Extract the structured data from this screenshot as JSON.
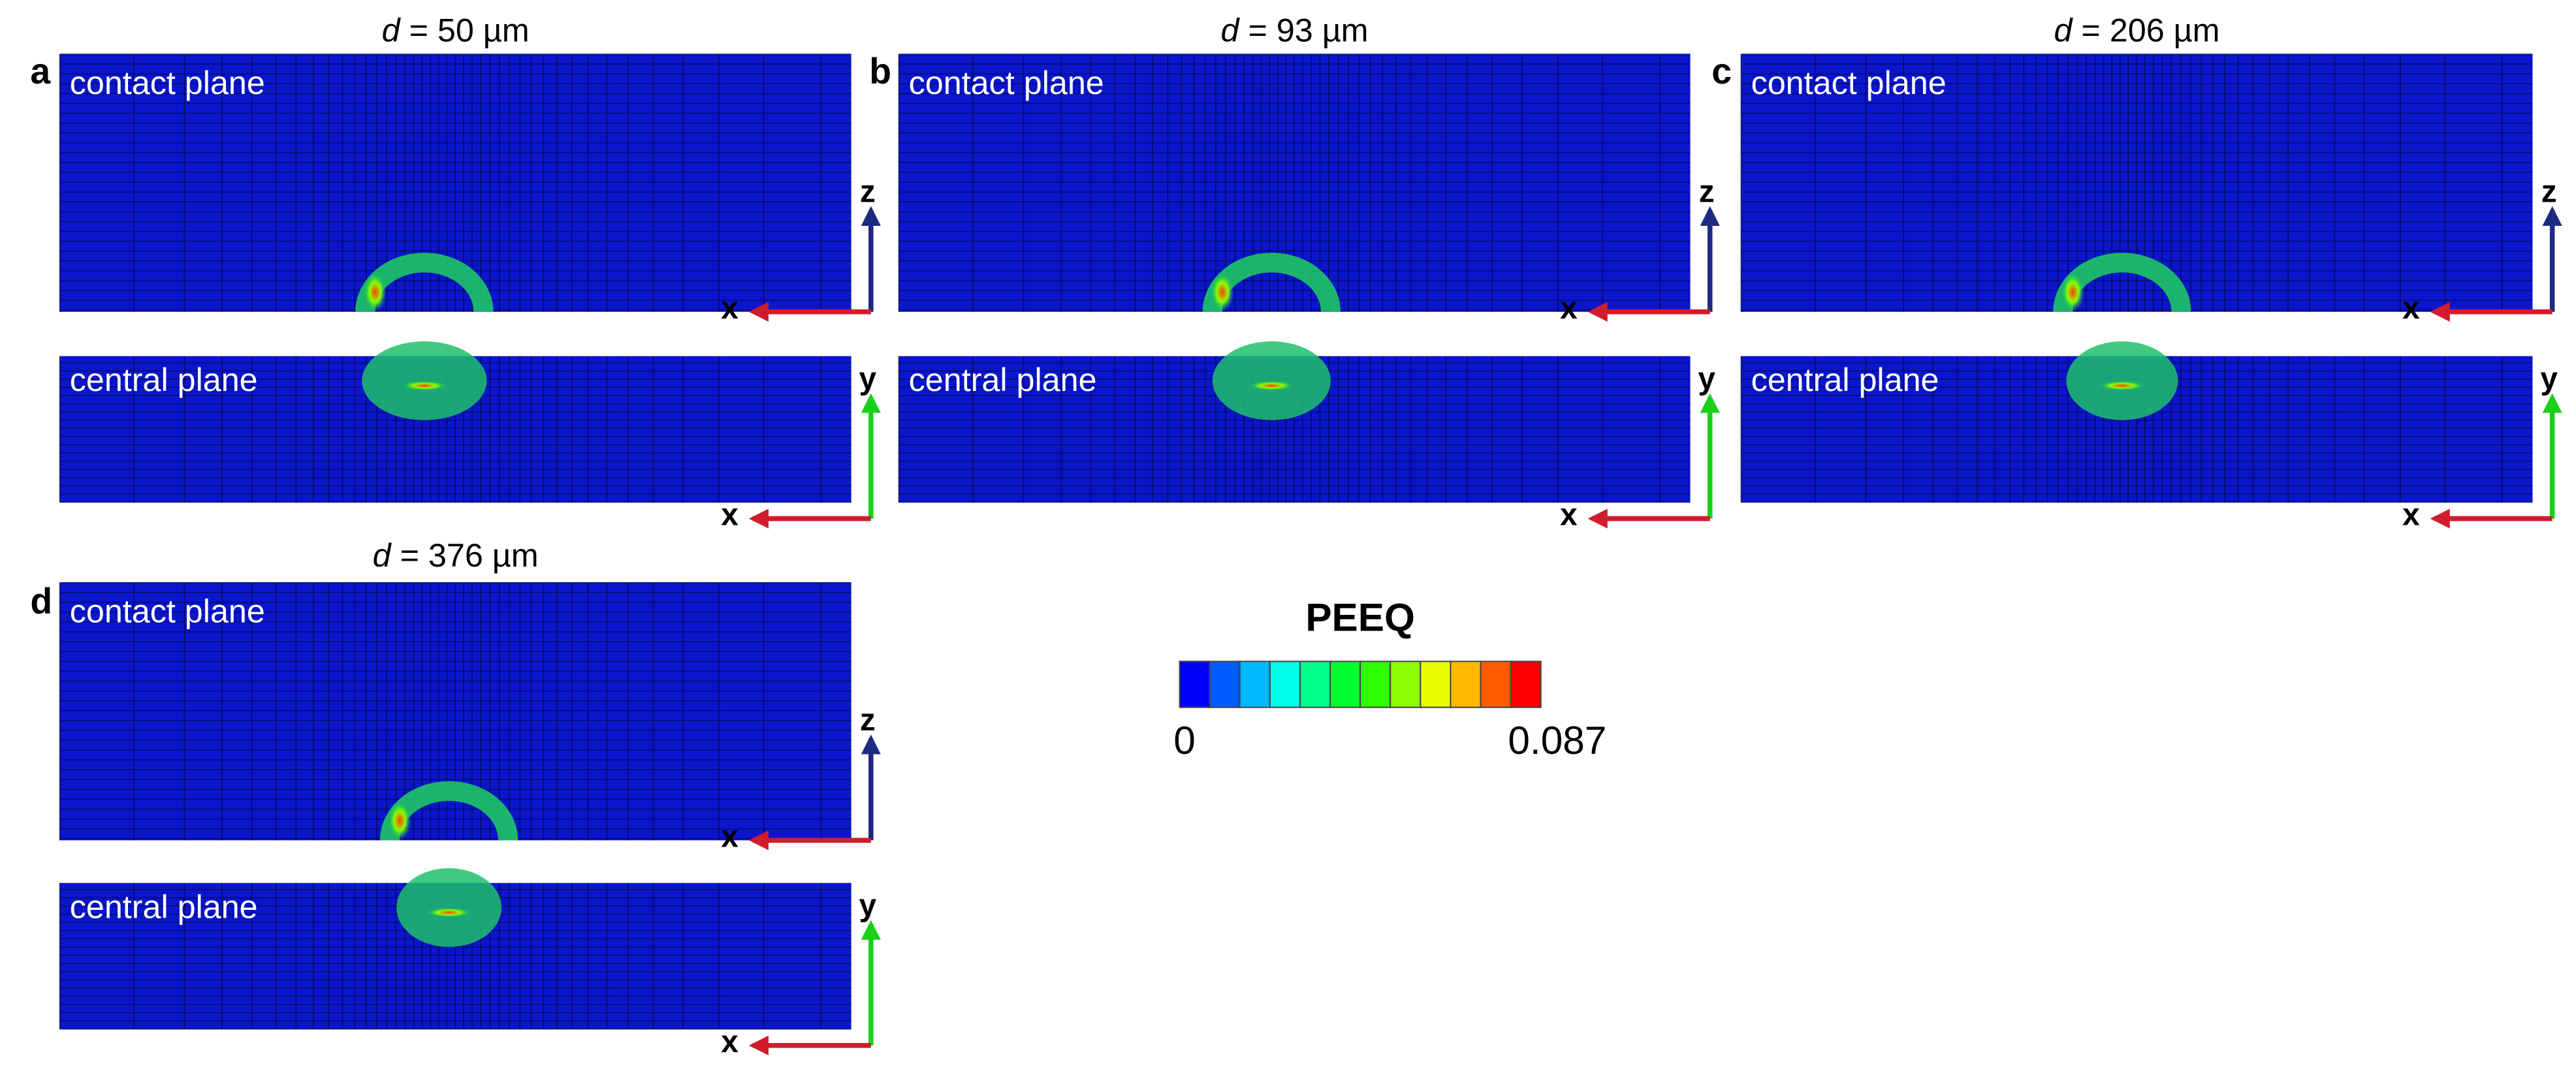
{
  "panels": [
    {
      "label": "a",
      "title_symbol": "d",
      "title_rest": " = 50 µm"
    },
    {
      "label": "b",
      "title_symbol": "d",
      "title_rest": " = 93 µm"
    },
    {
      "label": "c",
      "title_symbol": "d",
      "title_rest": " = 206 µm"
    },
    {
      "label": "d",
      "title_symbol": "d",
      "title_rest": " = 376 µm"
    }
  ],
  "plane_labels": {
    "contact": "contact plane",
    "central": "central plane"
  },
  "axis_labels": {
    "x": "x",
    "z": "z",
    "y": "y"
  },
  "colorbar": {
    "title": "PEEQ",
    "min": 0,
    "max": 0.087,
    "colors": [
      "#0000ff",
      "#005cff",
      "#00b9ff",
      "#00ffe8",
      "#00ff8b",
      "#00ff2e",
      "#2eff00",
      "#8bff00",
      "#e8ff00",
      "#ffb900",
      "#ff5c00",
      "#ff0000"
    ]
  }
}
